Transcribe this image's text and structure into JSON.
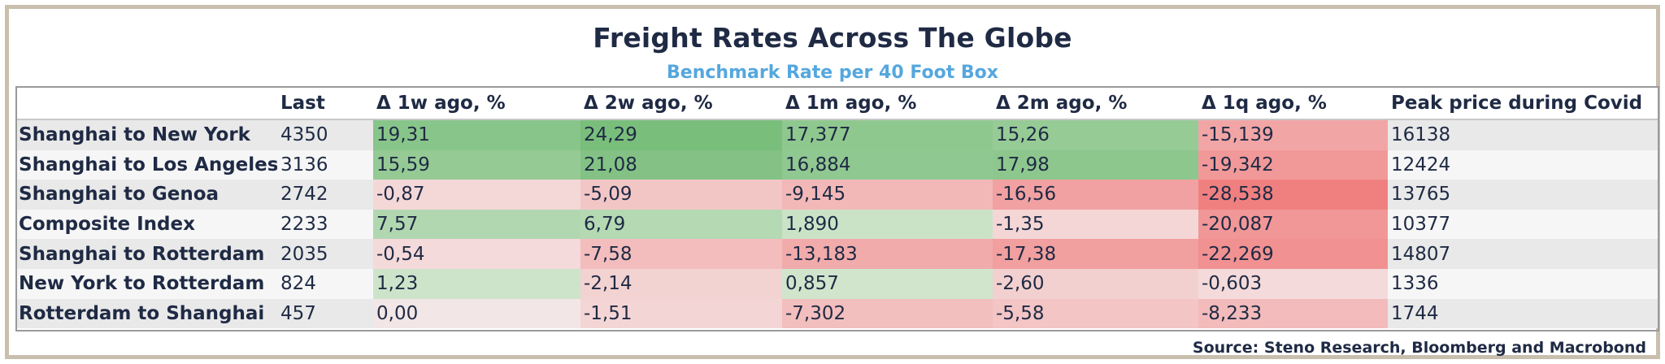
{
  "chart_data": {
    "type": "table",
    "title": "Freight Rates Across The Globe",
    "subtitle": "Benchmark Rate per 40 Foot Box",
    "source": "Source: Steno Research, Bloomberg and Macrobond",
    "columns": [
      "",
      "Last",
      "Δ 1w ago, %",
      "Δ 2w ago, %",
      "Δ 1m ago, %",
      "Δ 2m ago, %",
      "Δ 1q ago, %",
      "Peak price during Covid"
    ],
    "rows": [
      {
        "route": "Shanghai to New York",
        "last": "4350",
        "changes": [
          "19,31",
          "24,29",
          "17,377",
          "15,26",
          "-15,139"
        ],
        "peak": "16138"
      },
      {
        "route": "Shanghai to Los Angeles",
        "last": "3136",
        "changes": [
          "15,59",
          "21,08",
          "16,884",
          "17,98",
          "-19,342"
        ],
        "peak": "12424"
      },
      {
        "route": "Shanghai to Genoa",
        "last": "2742",
        "changes": [
          "-0,87",
          "-5,09",
          "-9,145",
          "-16,56",
          "-28,538"
        ],
        "peak": "13765"
      },
      {
        "route": "Composite Index",
        "last": "2233",
        "changes": [
          "7,57",
          "6,79",
          "1,890",
          "-1,35",
          "-20,087"
        ],
        "peak": "10377"
      },
      {
        "route": "Shanghai to Rotterdam",
        "last": "2035",
        "changes": [
          "-0,54",
          "-7,58",
          "-13,183",
          "-17,38",
          "-22,269"
        ],
        "peak": "14807"
      },
      {
        "route": "New York to Rotterdam",
        "last": "824",
        "changes": [
          "1,23",
          "-2,14",
          "0,857",
          "-2,60",
          "-0,603"
        ],
        "peak": "1336"
      },
      {
        "route": "Rotterdam to Shanghai",
        "last": "457",
        "changes": [
          "0,00",
          "-1,51",
          "-7,302",
          "-5,58",
          "-8,233"
        ],
        "peak": "1744"
      }
    ],
    "colors": {
      "positive_max": "#6cb86f",
      "negative_max": "#f08080",
      "neutral": "#f2e6e6"
    }
  }
}
